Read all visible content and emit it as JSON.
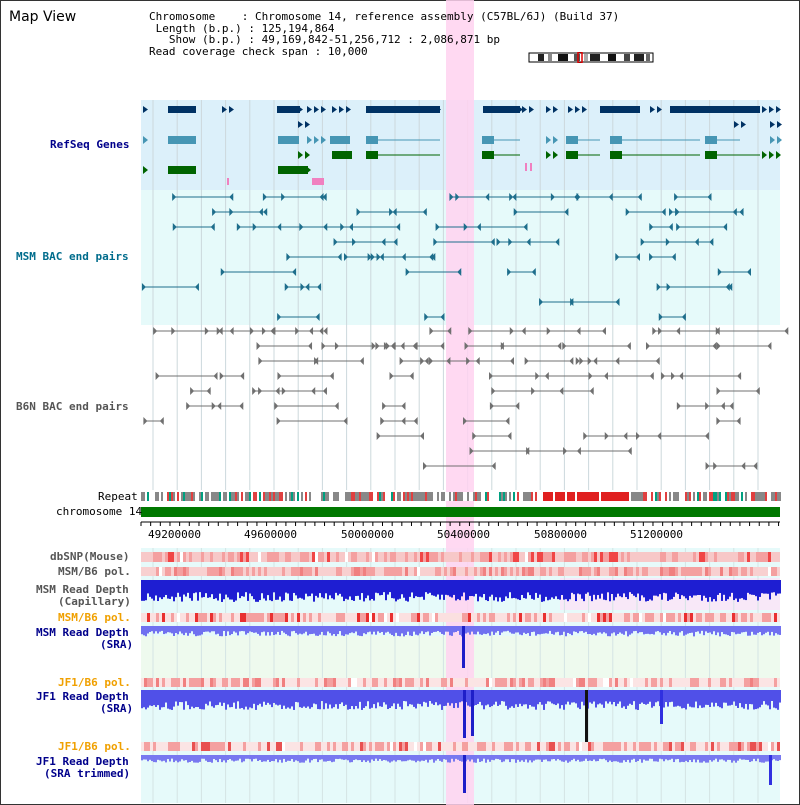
{
  "header": {
    "title": "Map View",
    "chromosome_label": "Chromosome",
    "chromosome_value": "Chromosome 14, reference assembly (C57BL/6J) (Build 37)",
    "length_label": "Length (b.p.)",
    "length_value": "125,194,864",
    "show_label": "Show (b.p.)",
    "show_value": "49,169,842-51,256,712 : 2,086,871 bp",
    "coverage_label": "Read coverage check span",
    "coverage_value": "10,000"
  },
  "tracks": {
    "refseq": "RefSeq Genes",
    "msm_bac": "MSM BAC end pairs",
    "b6n_bac": "B6N BAC end pairs",
    "repeat": "Repeat",
    "chromosome": "chromosome 14",
    "dbsnp": "dbSNP(Mouse)",
    "msm_b6_pol_1": "MSM/B6 pol.",
    "msm_depth_cap_1": "MSM Read Depth",
    "msm_depth_cap_2": "(Capillary)",
    "msm_b6_pol_2": "MSM/B6 pol.",
    "msm_depth_sra_1": "MSM Read Depth",
    "msm_depth_sra_2": "(SRA)",
    "jf1_b6_pol_1": "JF1/B6 pol.",
    "jf1_depth_sra_1": "JF1 Read Depth",
    "jf1_depth_sra_2": "(SRA)",
    "jf1_b6_pol_2": "JF1/B6 pol.",
    "jf1_depth_trim_1": "JF1 Read Depth",
    "jf1_depth_trim_2": "(SRA trimmed)"
  },
  "axis": {
    "ticks": [
      "49200000",
      "49600000",
      "50000000",
      "50400000",
      "50800000",
      "51200000"
    ]
  },
  "colors": {
    "refseq_bg": "#dcf0fa",
    "bac_bg": "#e6fafa",
    "highlight": "#ffd2f0",
    "gene_dark": "#003264",
    "gene_mid": "#4696b4",
    "gene_green": "#006400",
    "chromosome_bar": "#007800",
    "depth_blue": "#2828e6",
    "snp_red": "#f04646"
  }
}
